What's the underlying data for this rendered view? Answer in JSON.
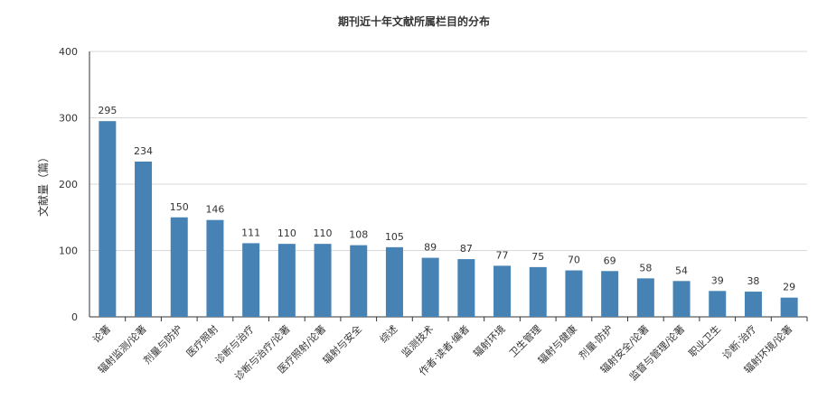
{
  "chart_data": {
    "type": "bar",
    "title": "期刊近十年文献所属栏目的分布",
    "xlabel": "",
    "ylabel": "文献量（篇）",
    "ylim": [
      0,
      400
    ],
    "yticks": [
      0,
      100,
      200,
      300,
      400
    ],
    "grid": true,
    "legend": "none",
    "bar_color": "#4682B4",
    "categories": [
      "论著",
      "辐射监测/论著",
      "剂量与防护",
      "医疗照射",
      "诊断与治疗",
      "诊断与治疗/论著",
      "医疗照射/论著",
      "辐射与安全",
      "综述",
      "监测技术",
      "作者·读者·编者",
      "辐射环境",
      "卫生管理",
      "辐射与健康",
      "剂量·防护",
      "辐射安全/论著",
      "监督与管理/论著",
      "职业卫生",
      "诊断·治疗",
      "辐射环境/论著"
    ],
    "values": [
      295,
      234,
      150,
      146,
      111,
      110,
      110,
      108,
      105,
      89,
      87,
      77,
      75,
      70,
      69,
      58,
      54,
      39,
      38,
      29
    ]
  }
}
